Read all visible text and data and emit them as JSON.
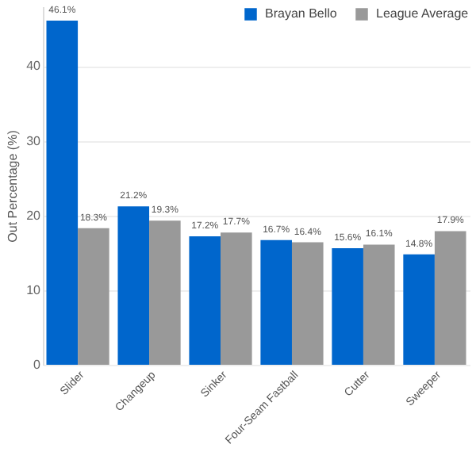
{
  "chart_data": {
    "type": "bar",
    "ylabel": "Out Percentage (%)",
    "categories": [
      "Slider",
      "Changeup",
      "Sinker",
      "Four-Seam Fastball",
      "Cutter",
      "Sweeper"
    ],
    "series": [
      {
        "name": "Brayan Bello",
        "color": "#0066cc",
        "values": [
          46.1,
          21.2,
          17.2,
          16.7,
          15.6,
          14.8
        ],
        "value_labels": [
          "46.1%",
          "21.2%",
          "17.2%",
          "16.7%",
          "15.6%",
          "14.8%"
        ]
      },
      {
        "name": "League Average",
        "color": "#999999",
        "values": [
          18.3,
          19.3,
          17.7,
          16.4,
          16.1,
          17.9
        ],
        "value_labels": [
          "18.3%",
          "19.3%",
          "17.7%",
          "16.4%",
          "16.1%",
          "17.9%"
        ]
      }
    ],
    "ylim": [
      0,
      48
    ],
    "yticks": [
      0,
      10,
      20,
      30,
      40
    ],
    "grid": "y",
    "legend": "top right"
  }
}
